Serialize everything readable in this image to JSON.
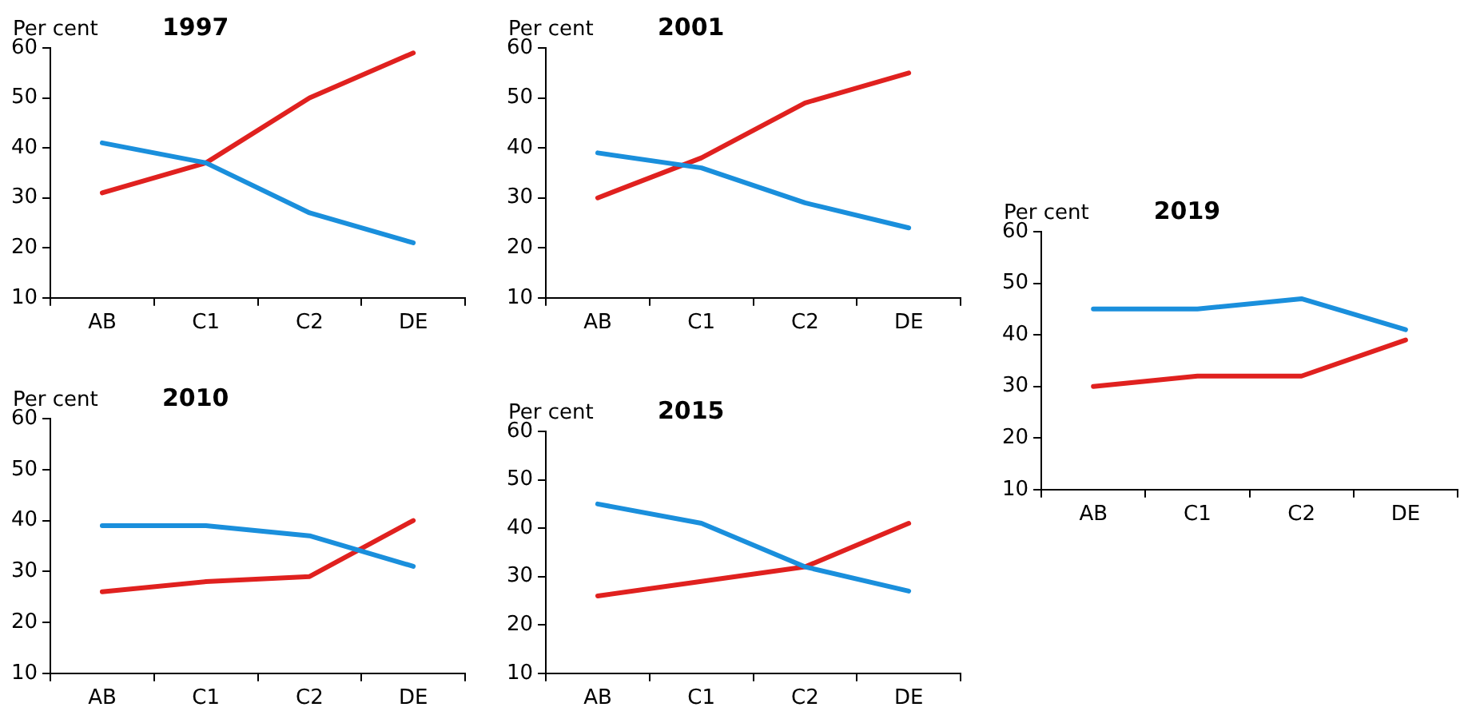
{
  "chart_data": [
    {
      "type": "line",
      "title": "1997",
      "ylabel": "Per cent",
      "categories": [
        "AB",
        "C1",
        "C2",
        "DE"
      ],
      "ylim": [
        10,
        60
      ],
      "yticks": [
        10,
        20,
        30,
        40,
        50,
        60
      ],
      "grid": false,
      "legend": false,
      "marker": "none",
      "series": [
        {
          "color": "#1a8fdc",
          "values": [
            41,
            37,
            27,
            21
          ]
        },
        {
          "color": "#e0211f",
          "values": [
            31,
            37,
            50,
            59
          ]
        }
      ]
    },
    {
      "type": "line",
      "title": "2001",
      "ylabel": "Per cent",
      "categories": [
        "AB",
        "C1",
        "C2",
        "DE"
      ],
      "ylim": [
        10,
        60
      ],
      "yticks": [
        10,
        20,
        30,
        40,
        50,
        60
      ],
      "grid": false,
      "legend": false,
      "marker": "none",
      "series": [
        {
          "color": "#1a8fdc",
          "values": [
            39,
            36,
            29,
            24
          ]
        },
        {
          "color": "#e0211f",
          "values": [
            30,
            38,
            49,
            55
          ]
        }
      ]
    },
    {
      "type": "line",
      "title": "2019",
      "ylabel": "Per cent",
      "categories": [
        "AB",
        "C1",
        "C2",
        "DE"
      ],
      "ylim": [
        10,
        60
      ],
      "yticks": [
        10,
        20,
        30,
        40,
        50,
        60
      ],
      "grid": false,
      "legend": false,
      "marker": "none",
      "series": [
        {
          "color": "#1a8fdc",
          "values": [
            45,
            45,
            47,
            41
          ]
        },
        {
          "color": "#e0211f",
          "values": [
            30,
            32,
            32,
            39
          ]
        }
      ]
    },
    {
      "type": "line",
      "title": "2010",
      "ylabel": "Per cent",
      "categories": [
        "AB",
        "C1",
        "C2",
        "DE"
      ],
      "ylim": [
        10,
        60
      ],
      "yticks": [
        10,
        20,
        30,
        40,
        50,
        60
      ],
      "grid": false,
      "legend": false,
      "marker": "none",
      "series": [
        {
          "color": "#1a8fdc",
          "values": [
            39,
            39,
            37,
            31
          ]
        },
        {
          "color": "#e0211f",
          "values": [
            26,
            28,
            29,
            40
          ]
        }
      ]
    },
    {
      "type": "line",
      "title": "2015",
      "ylabel": "Per cent",
      "categories": [
        "AB",
        "C1",
        "C2",
        "DE"
      ],
      "ylim": [
        10,
        60
      ],
      "yticks": [
        10,
        20,
        30,
        40,
        50,
        60
      ],
      "grid": false,
      "legend": false,
      "marker": "none",
      "series": [
        {
          "color": "#1a8fdc",
          "values": [
            45,
            41,
            32,
            27
          ]
        },
        {
          "color": "#e0211f",
          "values": [
            26,
            29,
            32,
            41
          ]
        }
      ]
    }
  ]
}
